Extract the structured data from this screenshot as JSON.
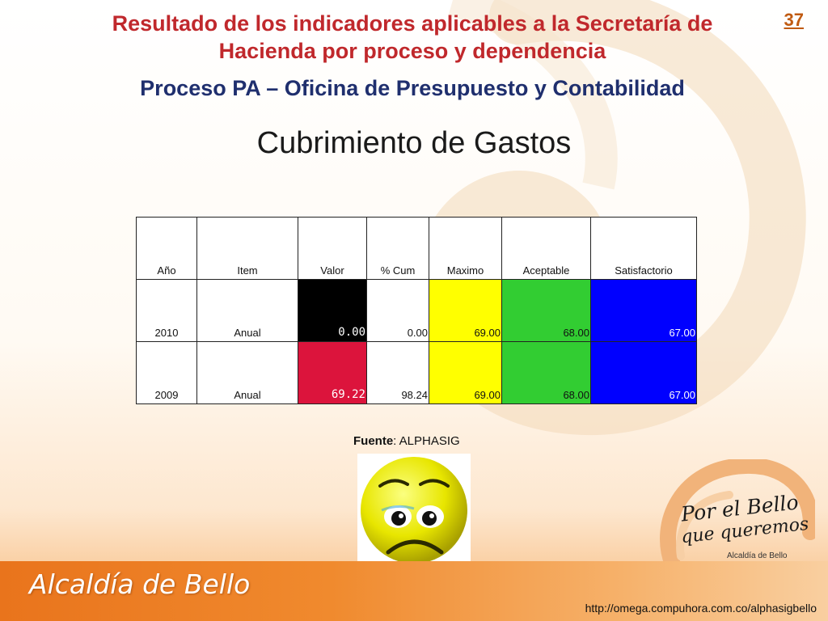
{
  "header": {
    "title_line1": "Resultado de los indicadores aplicables a la Secretaría de",
    "title_line2": "Hacienda por proceso y dependencia",
    "process_line": "Proceso PA – Oficina de Presupuesto y Contabilidad",
    "slide_number": "37"
  },
  "subtitle": "Cubrimiento de Gastos",
  "table": {
    "headers": [
      "Año",
      "Item",
      "Valor",
      "% Cum",
      "Maximo",
      "Aceptable",
      "Satisfactorio"
    ],
    "rows": [
      {
        "year": "2010",
        "item": "Anual",
        "valor": "0.00",
        "cum": "0.00",
        "maximo": "69.00",
        "aceptable": "68.00",
        "satisfactorio": "67.00",
        "valor_color": "#000000",
        "valor_text_color": "#ffffff"
      },
      {
        "year": "2009",
        "item": "Anual",
        "valor": "69.22",
        "cum": "98.24",
        "maximo": "69.00",
        "aceptable": "68.00",
        "satisfactorio": "67.00",
        "valor_color": "#dc143c",
        "valor_text_color": "#ffffff"
      }
    ],
    "colors": {
      "maximo": "#ffff00",
      "aceptable": "#32cd32",
      "satisfactorio": "#0000ff"
    }
  },
  "source": {
    "label": "Fuente",
    "value": ": ALPHASIG"
  },
  "face_icon": "sad-face-icon",
  "logo": {
    "line1": "Por el Bello",
    "line2": "que queremos",
    "line3": "Alcaldía de Bello"
  },
  "footer": {
    "brand": "Alcaldía de Bello",
    "url": "http://omega.compuhora.com.co/alphasigbello"
  }
}
